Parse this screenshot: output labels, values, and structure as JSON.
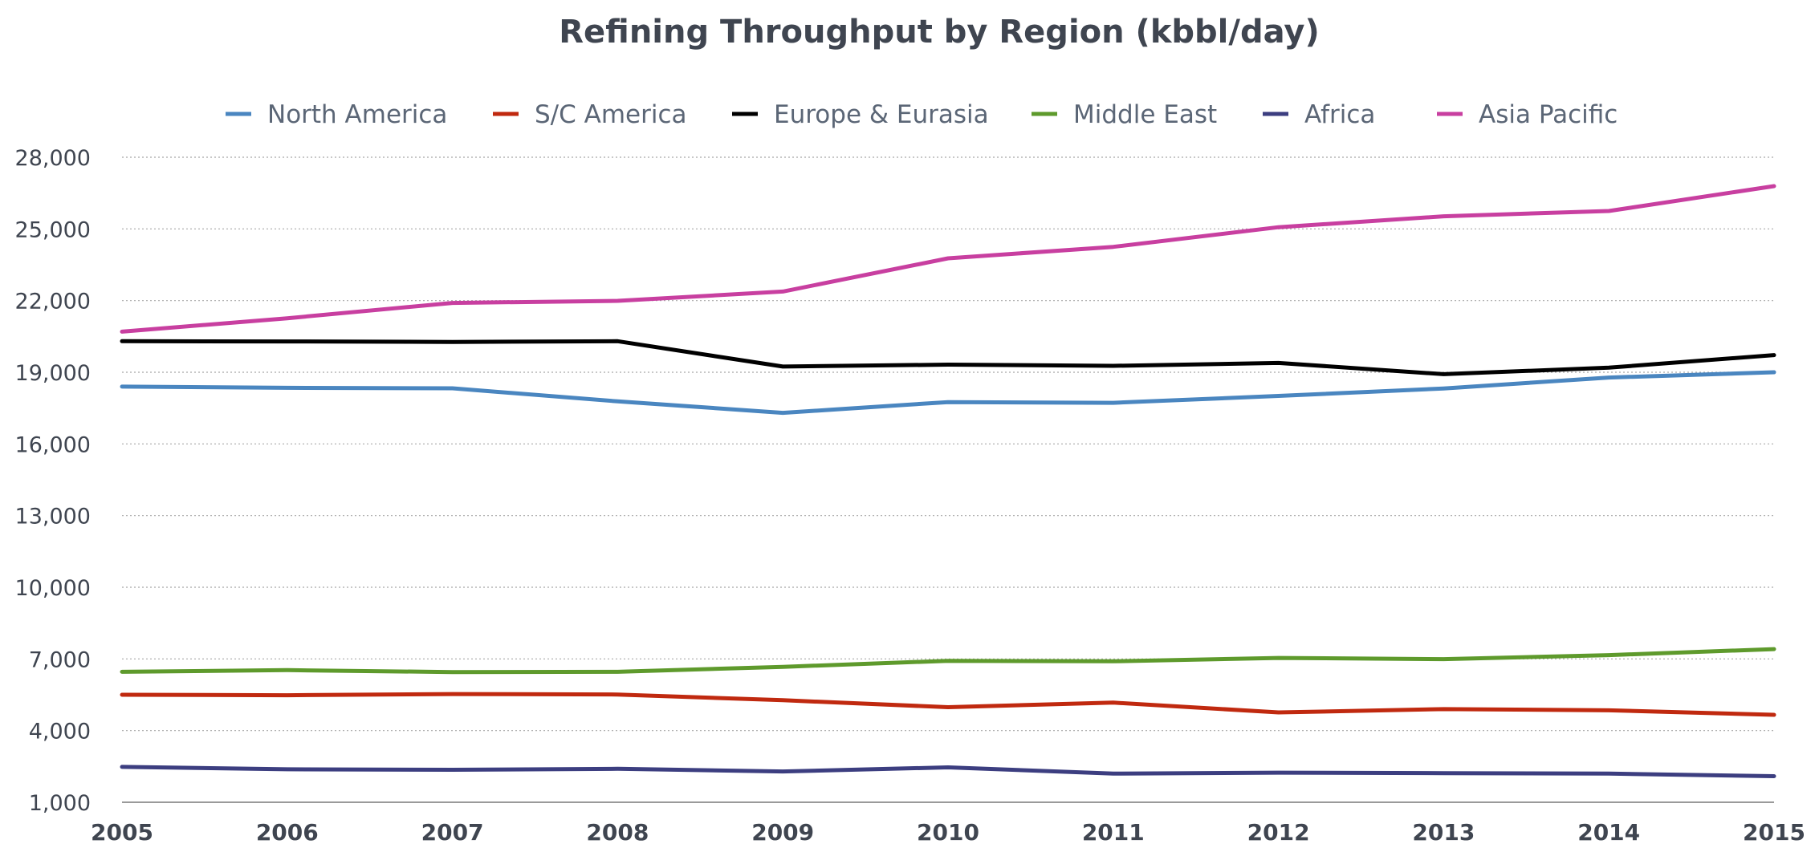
{
  "chart_data": {
    "type": "line",
    "title": "Refining Throughput by Region (kbbl/day)",
    "xlabel": "",
    "ylabel": "",
    "x": [
      "2005",
      "2006",
      "2007",
      "2008",
      "2009",
      "2010",
      "2011",
      "2012",
      "2013",
      "2014",
      "2015"
    ],
    "ylim": [
      1000,
      28000
    ],
    "yticks": [
      "1,000",
      "4,000",
      "7,000",
      "10,000",
      "13,000",
      "16,000",
      "19,000",
      "22,000",
      "25,000",
      "28,000"
    ],
    "yticks_values": [
      1000,
      4000,
      7000,
      10000,
      13000,
      16000,
      19000,
      22000,
      25000,
      28000
    ],
    "grid": true,
    "legend_position": "top",
    "series": [
      {
        "name": "North America",
        "color": "#4a86c0",
        "values": [
          18400,
          18350,
          18330,
          17780,
          17300,
          17750,
          17720,
          18010,
          18320,
          18780,
          19000
        ]
      },
      {
        "name": "S/C America",
        "color": "#c0290f",
        "values": [
          5500,
          5480,
          5530,
          5510,
          5270,
          4980,
          5170,
          4760,
          4900,
          4850,
          4660
        ]
      },
      {
        "name": "Europe & Eurasia",
        "color": "#000000",
        "values": [
          20300,
          20290,
          20270,
          20300,
          19240,
          19320,
          19270,
          19390,
          18920,
          19190,
          19720
        ]
      },
      {
        "name": "Middle East",
        "color": "#5e9a2c",
        "values": [
          6460,
          6530,
          6450,
          6460,
          6670,
          6920,
          6900,
          7040,
          6990,
          7160,
          7410
        ]
      },
      {
        "name": "Africa",
        "color": "#3c3e80",
        "values": [
          2480,
          2380,
          2360,
          2400,
          2290,
          2460,
          2200,
          2240,
          2220,
          2200,
          2090
        ]
      },
      {
        "name": "Asia Pacific",
        "color": "#c83fa0",
        "values": [
          20700,
          21260,
          21900,
          21990,
          22380,
          23770,
          24250,
          25070,
          25530,
          25750,
          26790
        ]
      }
    ]
  }
}
